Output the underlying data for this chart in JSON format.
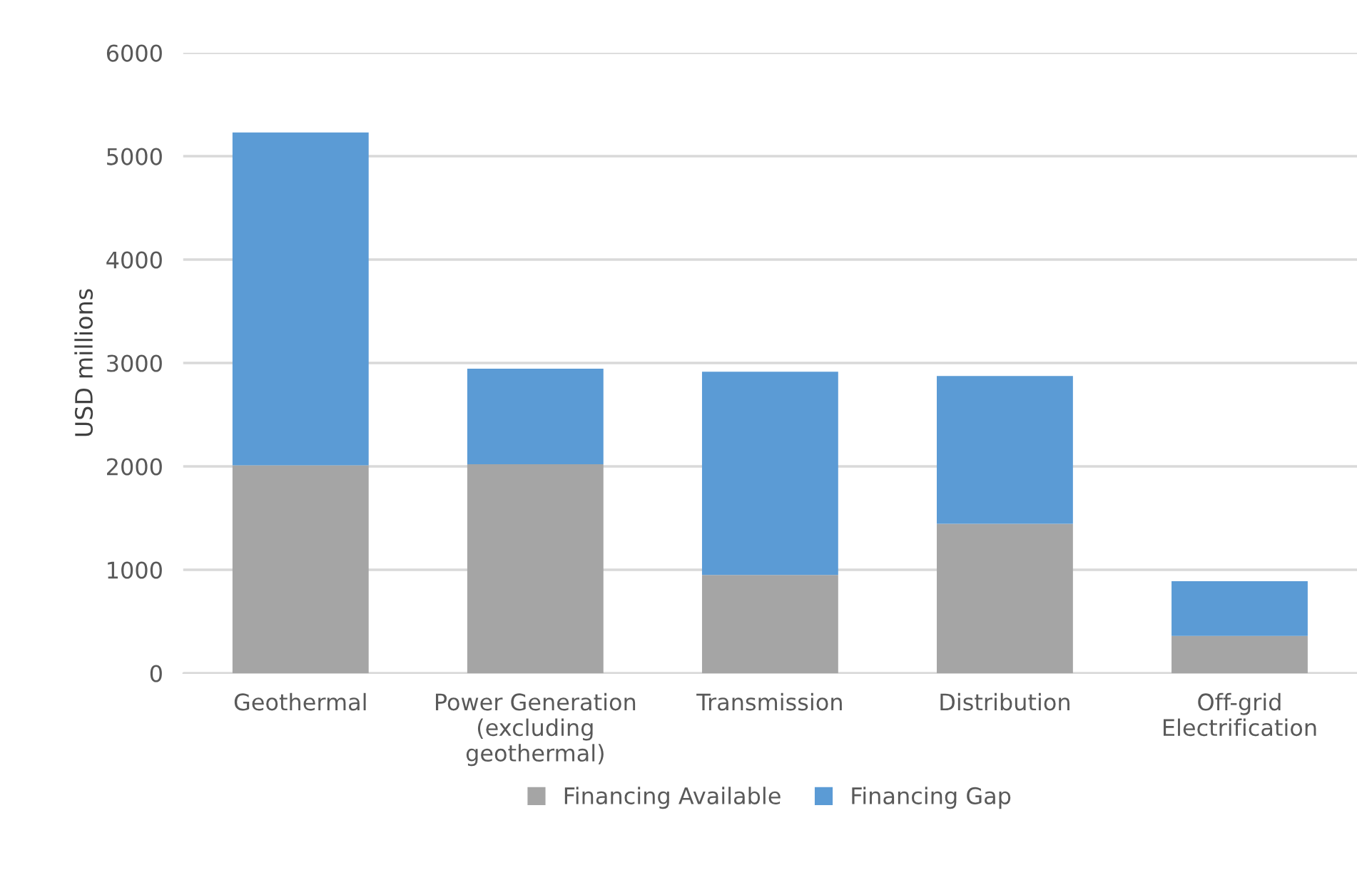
{
  "chart_data": {
    "type": "bar",
    "stacked": true,
    "ylabel": "USD millions",
    "categories": [
      "Geothermal",
      "Power Generation\n(excluding\ngeothermal)",
      "Transmission",
      "Distribution",
      "Off-grid\nElectrification"
    ],
    "series": [
      {
        "name": "Financing Available",
        "color": "#a5a5a5",
        "values": [
          2010,
          2020,
          950,
          1445,
          360
        ]
      },
      {
        "name": "Financing Gap",
        "color": "#5b9bd5",
        "values": [
          3220,
          925,
          1965,
          1430,
          530
        ]
      }
    ],
    "ylim": [
      0,
      6000
    ],
    "yticks": [
      0,
      1000,
      2000,
      3000,
      4000,
      5000,
      6000
    ],
    "grid": "y",
    "legend": "bottom"
  }
}
